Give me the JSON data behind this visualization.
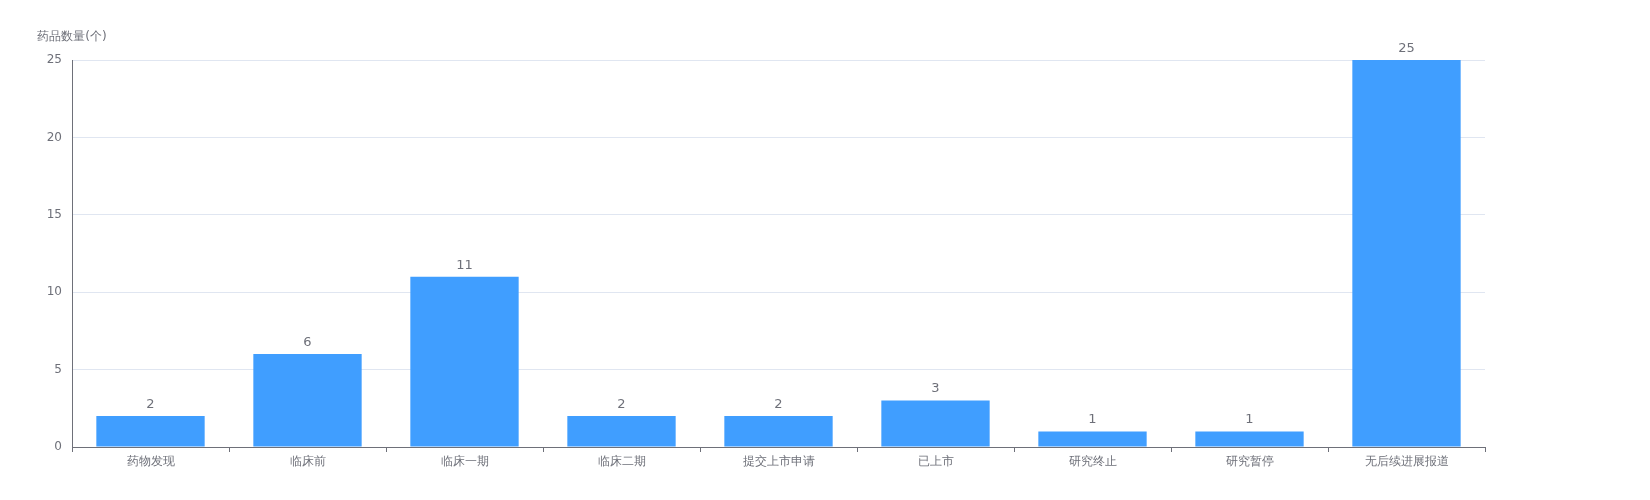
{
  "chart_data": {
    "type": "bar",
    "ylabel": "药品数量(个)",
    "categories": [
      "药物发现",
      "临床前",
      "临床一期",
      "临床二期",
      "提交上市申请",
      "已上市",
      "研究终止",
      "研究暂停",
      "无后续进展报道"
    ],
    "values": [
      2,
      6,
      11,
      2,
      2,
      3,
      1,
      1,
      25
    ],
    "color": "#409eff",
    "ylim": [
      0,
      25
    ],
    "yticks": [
      0,
      5,
      10,
      15,
      20,
      25
    ],
    "grid": "y",
    "data_labels": true
  }
}
